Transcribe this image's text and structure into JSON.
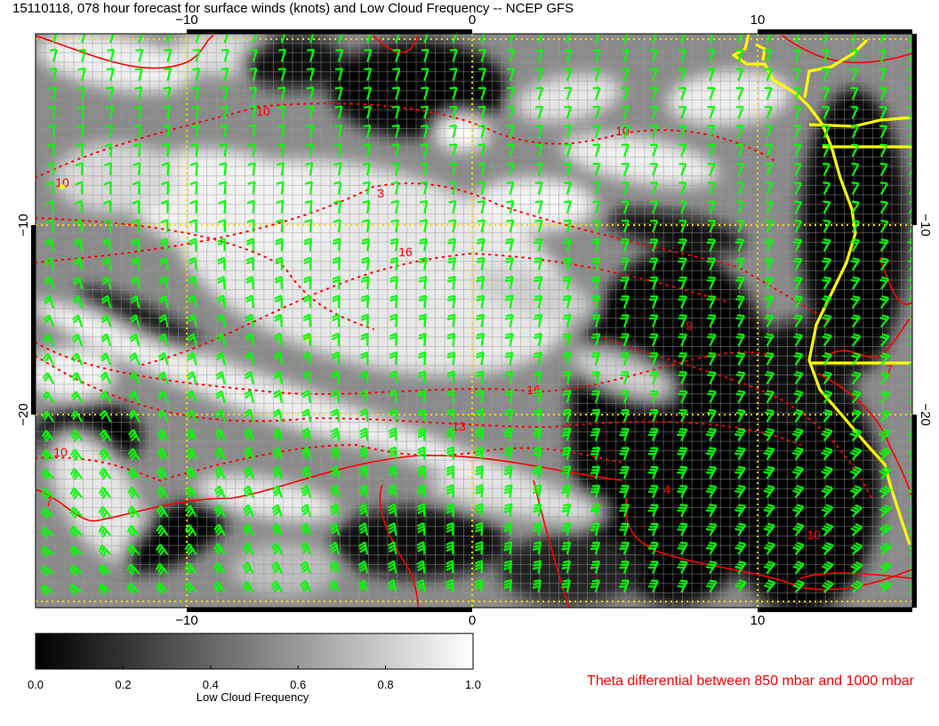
{
  "title": "15110118, 078 hour forecast for surface winds (knots) and Low Cloud Frequency -- NCEP GFS",
  "axes": {
    "lon_ticks": [
      "−10",
      "0",
      "10"
    ],
    "lat_ticks": [
      "−10",
      "−20"
    ],
    "lon_range": [
      -15.3,
      15.4
    ],
    "lat_range": [
      -30.2,
      0.2
    ]
  },
  "colorbar": {
    "label": "Low Cloud Frequency",
    "ticks": [
      "0.0",
      "0.2",
      "0.4",
      "0.6",
      "0.8",
      "1.0"
    ],
    "range": [
      0,
      1
    ],
    "colors": [
      "#000000",
      "#ffffff"
    ]
  },
  "contour_legend": "Theta differential between 850 mbar and 1000 mbar",
  "contour_labels": [
    "10",
    "10",
    "3",
    "16",
    "10",
    "16",
    "13",
    "10",
    "7",
    "7",
    "4",
    "10",
    "9"
  ],
  "colors": {
    "wind_barbs": "#00ff00",
    "contours": "#ff0000",
    "coastline": "#ffff00",
    "grid_reference": "#ffd700"
  }
}
